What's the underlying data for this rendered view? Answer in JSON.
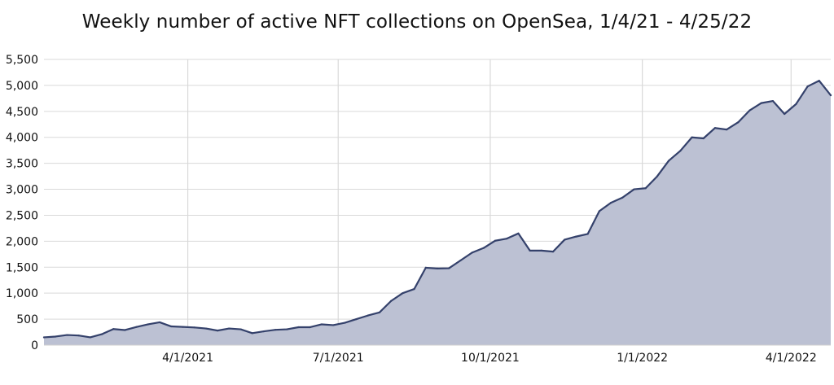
{
  "chart_data": {
    "type": "area",
    "title": "Weekly number of active NFT collections on OpenSea, 1/4/21 - 4/25/22",
    "xlabel": "",
    "ylabel": "",
    "x_range": [
      "2021-01-04",
      "2022-04-25"
    ],
    "ylim": [
      0,
      5500
    ],
    "y_ticks": [
      0,
      500,
      1000,
      1500,
      2000,
      2500,
      3000,
      3500,
      4000,
      4500,
      5000,
      5500
    ],
    "y_tick_labels": [
      "0",
      "500",
      "1,000",
      "1,500",
      "2,000",
      "2,500",
      "3,000",
      "3,500",
      "4,000",
      "4,500",
      "5,000",
      "5,500"
    ],
    "x_ticks": [
      {
        "date": "2021-04-01",
        "label": "4/1/2021"
      },
      {
        "date": "2021-07-01",
        "label": "7/1/2021"
      },
      {
        "date": "2021-10-01",
        "label": "10/1/2021"
      },
      {
        "date": "2022-01-01",
        "label": "1/1/2022"
      },
      {
        "date": "2022-04-01",
        "label": "4/1/2022"
      }
    ],
    "grid": {
      "horizontal": true,
      "vertical": true
    },
    "colors": {
      "line": "#34416b",
      "fill": "#bcc1d3",
      "grid": "#d9d9d9"
    },
    "series": [
      {
        "dates": [
          "2021-01-04",
          "2021-01-11",
          "2021-01-18",
          "2021-01-25",
          "2021-02-01",
          "2021-02-08",
          "2021-02-15",
          "2021-02-22",
          "2021-03-01",
          "2021-03-08",
          "2021-03-15",
          "2021-03-22",
          "2021-03-29",
          "2021-04-05",
          "2021-04-12",
          "2021-04-19",
          "2021-04-26",
          "2021-05-03",
          "2021-05-10",
          "2021-05-17",
          "2021-05-24",
          "2021-05-31",
          "2021-06-07",
          "2021-06-14",
          "2021-06-21",
          "2021-06-28",
          "2021-07-05",
          "2021-07-12",
          "2021-07-19",
          "2021-07-26",
          "2021-08-02",
          "2021-08-09",
          "2021-08-16",
          "2021-08-23",
          "2021-08-30",
          "2021-09-06",
          "2021-09-13",
          "2021-09-20",
          "2021-09-27",
          "2021-10-04",
          "2021-10-11",
          "2021-10-18",
          "2021-10-25",
          "2021-11-01",
          "2021-11-08",
          "2021-11-15",
          "2021-11-22",
          "2021-11-29",
          "2021-12-06",
          "2021-12-13",
          "2021-12-20",
          "2021-12-27",
          "2022-01-03",
          "2022-01-10",
          "2022-01-17",
          "2022-01-24",
          "2022-01-31",
          "2022-02-07",
          "2022-02-14",
          "2022-02-21",
          "2022-02-28",
          "2022-03-07",
          "2022-03-14",
          "2022-03-21",
          "2022-03-28",
          "2022-04-04",
          "2022-04-11",
          "2022-04-18",
          "2022-04-25"
        ],
        "values": [
          150,
          165,
          195,
          185,
          150,
          210,
          310,
          290,
          350,
          400,
          440,
          360,
          350,
          340,
          320,
          280,
          320,
          305,
          230,
          265,
          295,
          305,
          345,
          345,
          400,
          385,
          430,
          500,
          570,
          630,
          850,
          1000,
          1080,
          1490,
          1475,
          1480,
          1630,
          1780,
          1870,
          2010,
          2050,
          2150,
          1820,
          1820,
          1800,
          2030,
          2090,
          2140,
          2580,
          2740,
          2840,
          3000,
          3020,
          3250,
          3550,
          3740,
          4000,
          3980,
          4180,
          4150,
          4290,
          4520,
          4660,
          4700,
          4450,
          4640,
          4980,
          5090,
          4810
        ]
      }
    ]
  }
}
